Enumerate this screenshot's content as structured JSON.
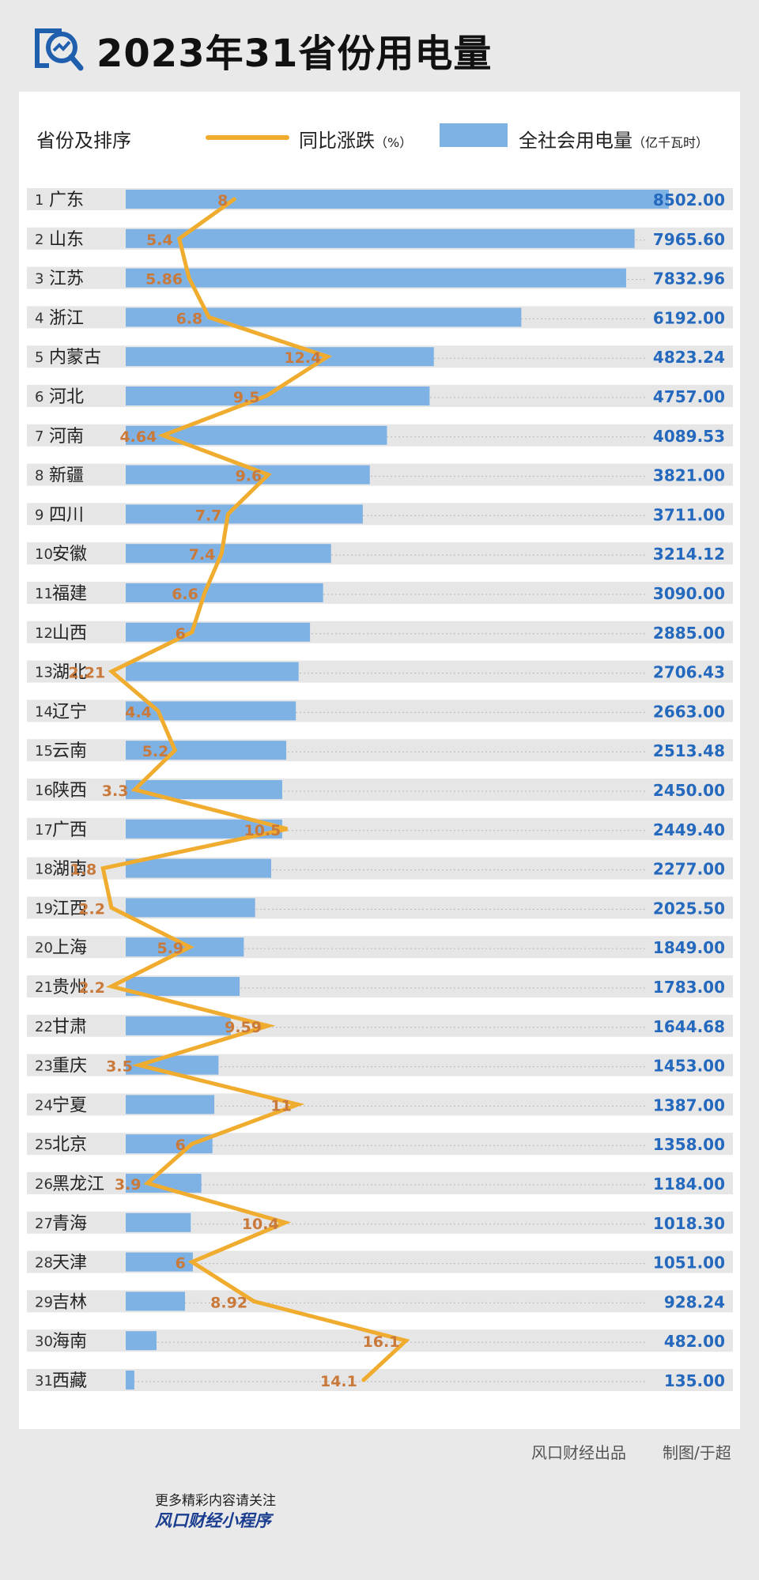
{
  "title": "2023年31省份用电量",
  "legend": {
    "rank_header": "省份及排序",
    "line_label": "同比涨跌",
    "line_unit": "（%）",
    "bar_label": "全社会用电量",
    "bar_unit": "（亿千瓦时）"
  },
  "credit": {
    "producer": "风口财经出品",
    "author": "制图/于超"
  },
  "footer": {
    "line1": "更多精彩内容请关注",
    "line2": "风口财经小程序"
  },
  "colors": {
    "bar": "#7fb2e4",
    "line": "#f0ac2f",
    "growth_label": "#c9793a",
    "value_label": "#2469bd",
    "row_stripe": "#e6e6e6"
  },
  "chart_data": {
    "type": "bar",
    "orientation": "horizontal",
    "title": "2023年31省份用电量",
    "categories": [
      "广东",
      "山东",
      "江苏",
      "浙江",
      "内蒙古",
      "河北",
      "河南",
      "新疆",
      "四川",
      "安徽",
      "福建",
      "山西",
      "湖北",
      "辽宁",
      "云南",
      "陕西",
      "广西",
      "湖南",
      "江西",
      "上海",
      "贵州",
      "甘肃",
      "重庆",
      "宁夏",
      "北京",
      "黑龙江",
      "青海",
      "天津",
      "吉林",
      "海南",
      "西藏"
    ],
    "ranks": [
      "1",
      "2",
      "3",
      "4",
      "5",
      "6",
      "7",
      "8",
      "9",
      "10",
      "11",
      "12",
      "13",
      "14",
      "15",
      "16",
      "17",
      "18",
      "19",
      "20",
      "21",
      "22",
      "23",
      "24",
      "25",
      "26",
      "27",
      "28",
      "29",
      "30",
      "31"
    ],
    "series": [
      {
        "name": "全社会用电量（亿千瓦时）",
        "type": "bar",
        "values": [
          8502.0,
          7965.6,
          7832.96,
          6192.0,
          4823.24,
          4757.0,
          4089.53,
          3821.0,
          3711.0,
          3214.12,
          3090.0,
          2885.0,
          2706.43,
          2663.0,
          2513.48,
          2450.0,
          2449.4,
          2277.0,
          2025.5,
          1849.0,
          1783.0,
          1644.68,
          1453.0,
          1387.0,
          1358.0,
          1184.0,
          1018.3,
          1051.0,
          928.24,
          482.0,
          135.0
        ],
        "labels": [
          "8502.00",
          "7965.60",
          "7832.96",
          "6192.00",
          "4823.24",
          "4757.00",
          "4089.53",
          "3821.00",
          "3711.00",
          "3214.12",
          "3090.00",
          "2885.00",
          "2706.43",
          "2663.00",
          "2513.48",
          "2450.00",
          "2449.40",
          "2277.00",
          "2025.50",
          "1849.00",
          "1783.00",
          "1644.68",
          "1453.00",
          "1387.00",
          "1358.00",
          "1184.00",
          "1018.30",
          "1051.00",
          "928.24",
          "482.00",
          "135.00"
        ]
      },
      {
        "name": "同比涨跌（%）",
        "type": "line",
        "values": [
          8,
          5.4,
          5.86,
          6.8,
          12.4,
          9.5,
          4.64,
          9.6,
          7.7,
          7.4,
          6.6,
          6,
          2.21,
          4.4,
          5.2,
          3.3,
          10.5,
          1.8,
          2.2,
          5.9,
          2.2,
          9.59,
          3.5,
          11,
          6,
          3.9,
          10.4,
          6,
          8.92,
          16.1,
          14.1
        ],
        "labels": [
          "8",
          "5.4",
          "5.86",
          "6.8",
          "12.4",
          "9.5",
          "4.64",
          "9.6",
          "7.7",
          "7.4",
          "6.6",
          "6",
          "2.21",
          "4.4",
          "5.2",
          "3.3",
          "10.5",
          "1.8",
          "2.2",
          "5.9",
          "2.2",
          "9.59",
          "3.5",
          "11",
          "6",
          "3.9",
          "10.4",
          "6",
          "8.92",
          "16.1",
          "14.1"
        ]
      }
    ],
    "bar_range": [
      0,
      8502
    ],
    "line_range": [
      0,
      18
    ],
    "grid": false,
    "legend_position": "top"
  }
}
